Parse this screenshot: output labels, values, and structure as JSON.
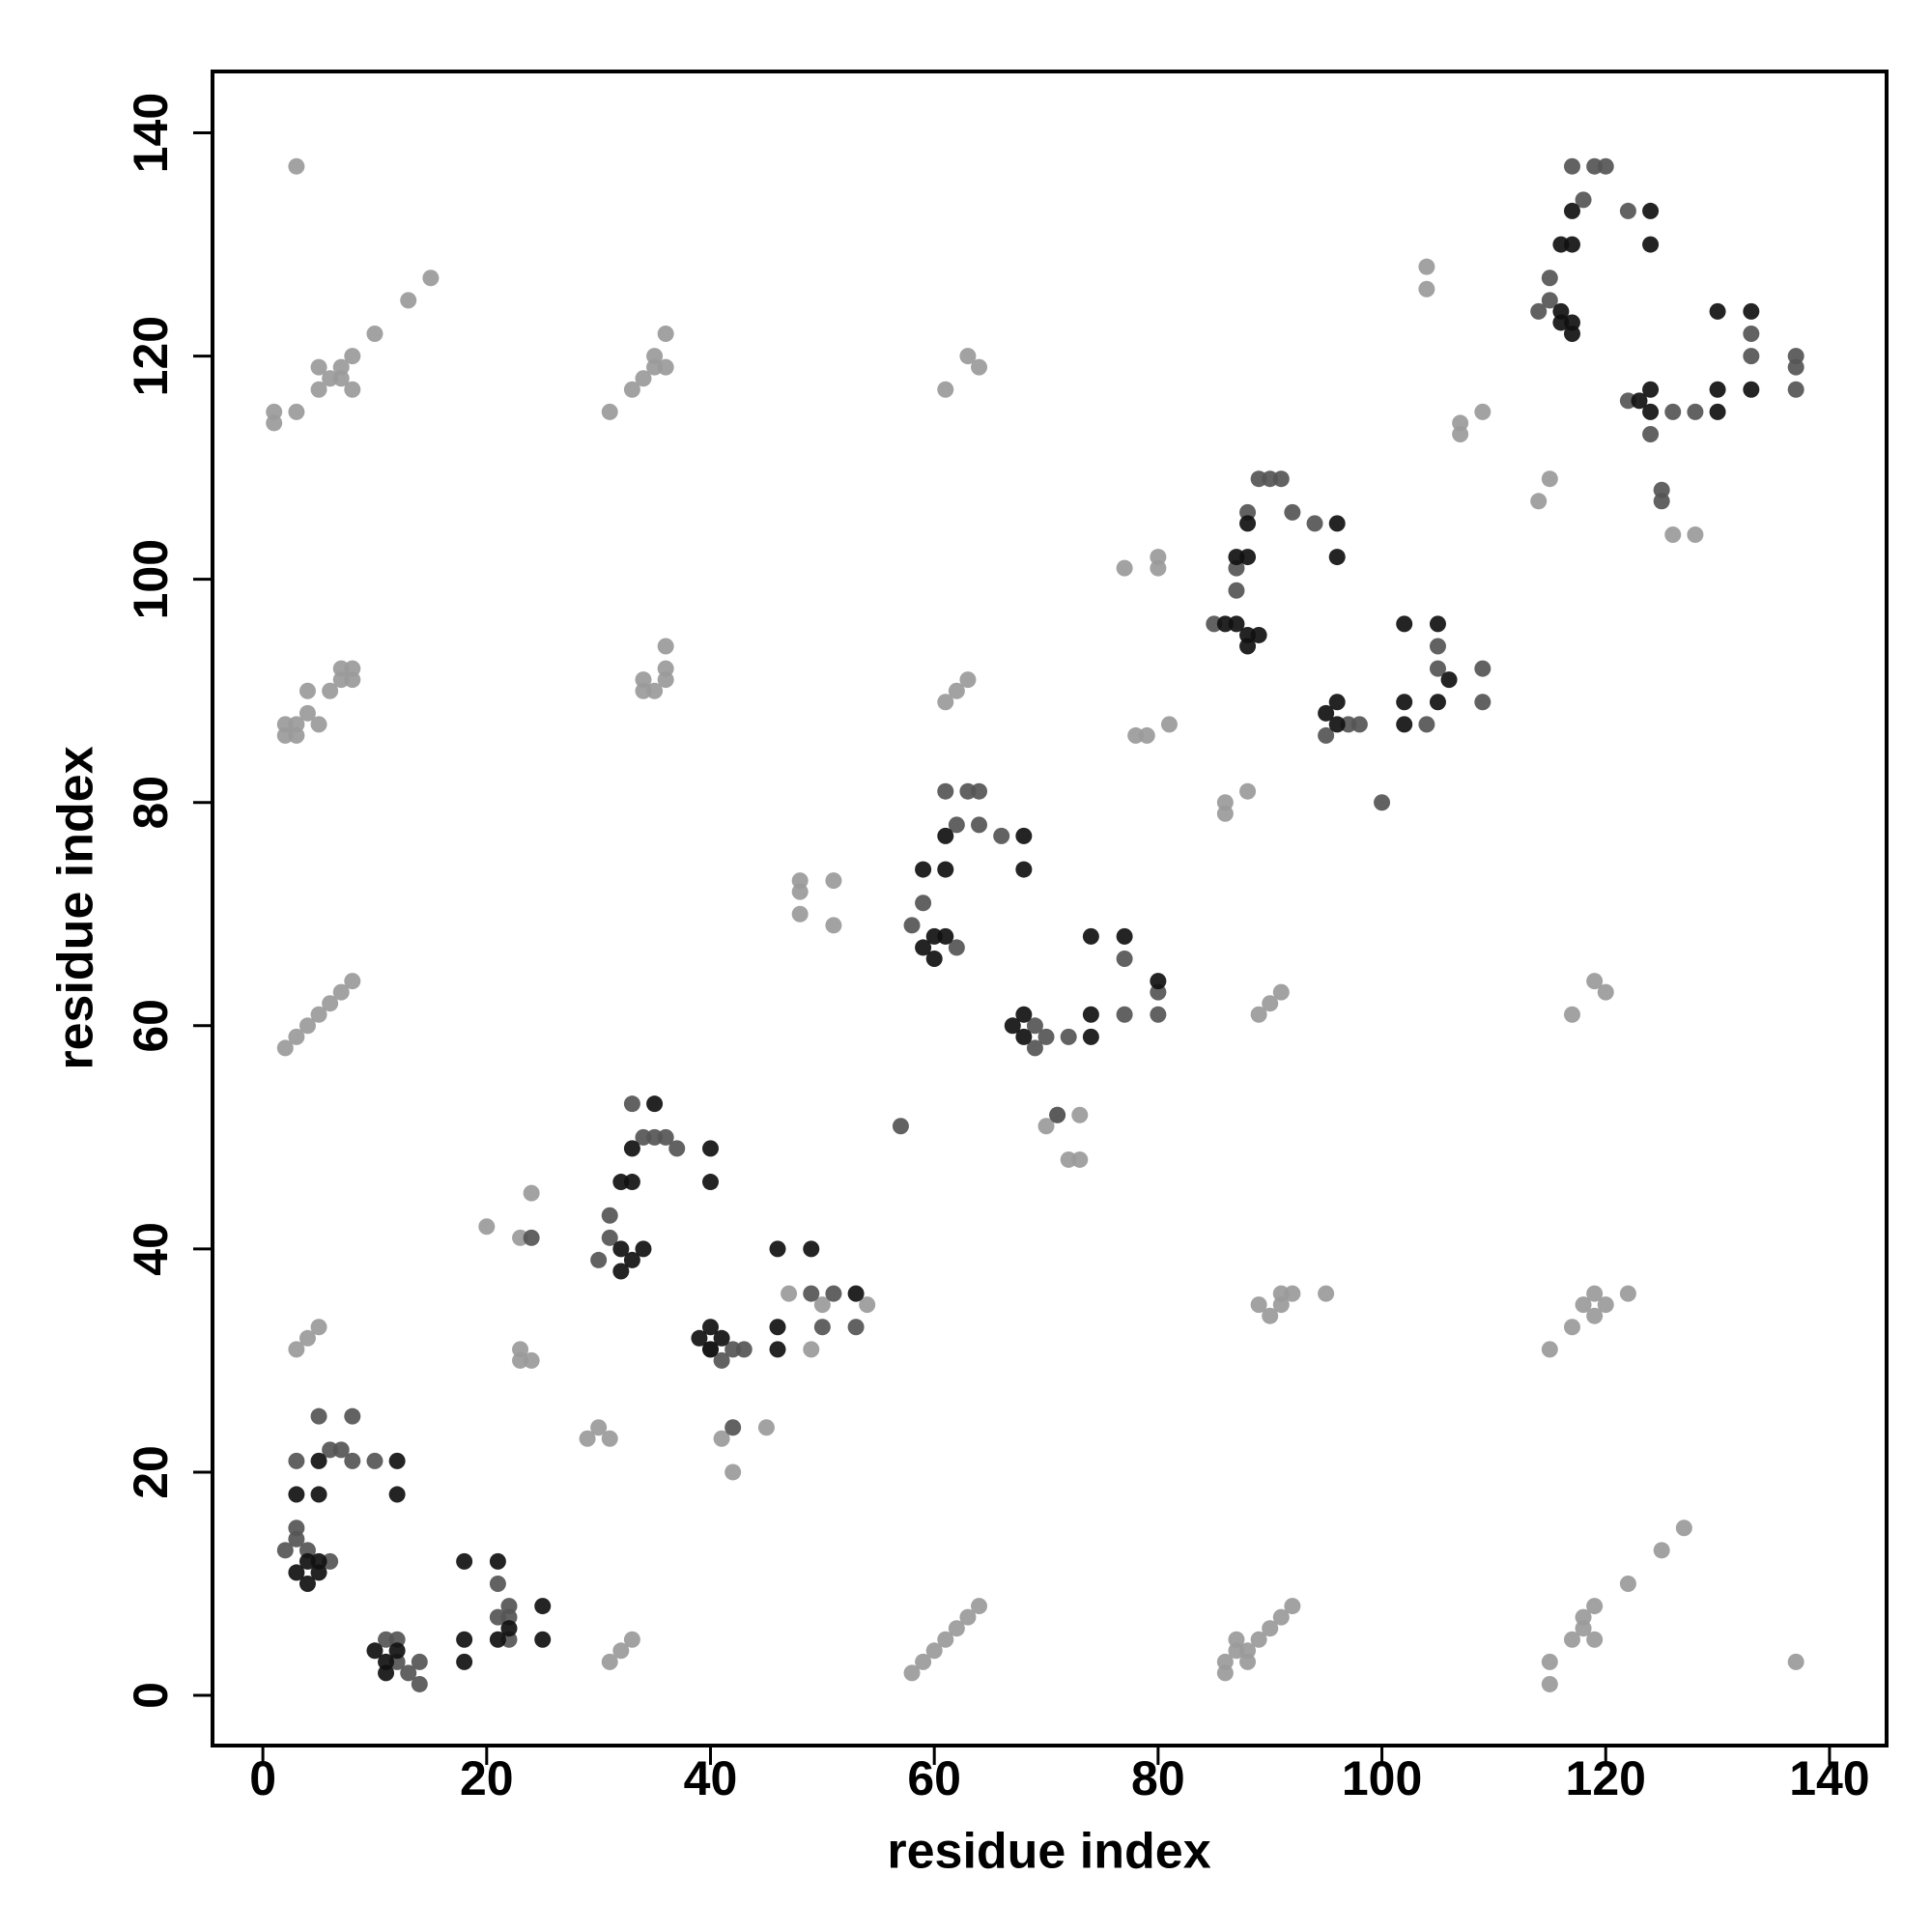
{
  "chart_data": {
    "type": "scatter",
    "xlabel": "residue index",
    "ylabel": "residue index",
    "xlim": [
      -4.5,
      145.1
    ],
    "ylim": [
      -4.5,
      145.5
    ],
    "xticks": [
      0,
      20,
      40,
      60,
      80,
      100,
      120,
      140
    ],
    "yticks": [
      0,
      20,
      40,
      60,
      80,
      100,
      120,
      140
    ],
    "series": [
      {
        "color": "#9a9a9a",
        "x": [
          3,
          1,
          1,
          3,
          5,
          5,
          6,
          7,
          7,
          8,
          8,
          10,
          13,
          15,
          31,
          33,
          34,
          35,
          35,
          36,
          36,
          61,
          63,
          64,
          2,
          2,
          3,
          3,
          4,
          5,
          4,
          6,
          7,
          7,
          8,
          8,
          34,
          34,
          35,
          36,
          36,
          36,
          61,
          62,
          63,
          2,
          3,
          4,
          5,
          6,
          7,
          8,
          3,
          4,
          5,
          31,
          32,
          33,
          58,
          59,
          60,
          61,
          62,
          63,
          64,
          86,
          86,
          87,
          87,
          88,
          88,
          89,
          90,
          91,
          92,
          115,
          115,
          117,
          118,
          118,
          119,
          119,
          122,
          125,
          127,
          137,
          89,
          90,
          91,
          91,
          92,
          95,
          115,
          117,
          118,
          119,
          119,
          120,
          122,
          89,
          90,
          91,
          117,
          119,
          120,
          77,
          80,
          80,
          78,
          79,
          81,
          86,
          86,
          88,
          104,
          104,
          107,
          107,
          109,
          114,
          115,
          126,
          128,
          20,
          23,
          24,
          23,
          23,
          24,
          29,
          30,
          31,
          41,
          42,
          45,
          47,
          50,
          49,
          48,
          48,
          48,
          51,
          51,
          70,
          71,
          73,
          72,
          73,
          54
        ],
        "y": [
          137,
          115,
          114,
          115,
          117,
          119,
          118,
          118,
          119,
          117,
          120,
          122,
          125,
          127,
          115,
          117,
          118,
          119,
          120,
          122,
          119,
          117,
          120,
          119,
          86,
          87,
          87,
          86,
          88,
          87,
          90,
          90,
          91,
          92,
          91,
          92,
          91,
          90,
          90,
          91,
          92,
          94,
          89,
          90,
          91,
          58,
          59,
          60,
          61,
          62,
          63,
          64,
          31,
          32,
          33,
          3,
          4,
          5,
          2,
          3,
          4,
          5,
          6,
          7,
          8,
          2,
          3,
          4,
          5,
          3,
          4,
          5,
          6,
          7,
          8,
          1,
          3,
          5,
          6,
          7,
          5,
          8,
          10,
          13,
          15,
          3,
          35,
          34,
          35,
          36,
          36,
          36,
          31,
          33,
          35,
          36,
          34,
          35,
          36,
          61,
          62,
          63,
          61,
          64,
          63,
          101,
          101,
          102,
          86,
          86,
          87,
          79,
          80,
          81,
          128,
          126,
          113,
          114,
          115,
          107,
          109,
          104,
          104,
          42,
          41,
          45,
          31,
          30,
          30,
          23,
          24,
          23,
          23,
          20,
          24,
          36,
          35,
          31,
          72,
          73,
          70,
          73,
          69,
          51,
          52,
          52,
          48,
          48,
          35
        ]
      },
      {
        "color": "#555555",
        "x": [
          2,
          3,
          3,
          4,
          6,
          3,
          5,
          6,
          7,
          8,
          10,
          8,
          11,
          12,
          12,
          13,
          14,
          14,
          21,
          22,
          21,
          22,
          22,
          24,
          31,
          31,
          33,
          34,
          35,
          37,
          36,
          30,
          40,
          41,
          42,
          43,
          42,
          49,
          50,
          51,
          53,
          58,
          59,
          61,
          62,
          63,
          64,
          64,
          66,
          62,
          57,
          69,
          69,
          70,
          71,
          72,
          77,
          77,
          80,
          80,
          87,
          87,
          88,
          89,
          90,
          91,
          92,
          94,
          85,
          95,
          97,
          98,
          100,
          104,
          105,
          105,
          109,
          109,
          115,
          115,
          117,
          118,
          119,
          120,
          122,
          114,
          122,
          124,
          125,
          125,
          126,
          128,
          133,
          133,
          137,
          137,
          137
        ],
        "y": [
          13,
          14,
          15,
          13,
          12,
          21,
          25,
          22,
          22,
          25,
          21,
          21,
          5,
          5,
          3,
          2,
          1,
          3,
          10,
          8,
          7,
          7,
          5,
          41,
          41,
          43,
          53,
          50,
          50,
          49,
          50,
          39,
          31,
          30,
          31,
          31,
          24,
          36,
          33,
          36,
          33,
          69,
          71,
          81,
          78,
          81,
          81,
          78,
          77,
          67,
          51,
          58,
          60,
          59,
          52,
          59,
          66,
          61,
          61,
          63,
          99,
          101,
          106,
          109,
          109,
          109,
          106,
          105,
          96,
          86,
          87,
          87,
          80,
          87,
          94,
          92,
          92,
          89,
          127,
          125,
          137,
          134,
          137,
          137,
          133,
          124,
          116,
          113,
          108,
          107,
          115,
          115,
          122,
          120,
          119,
          117,
          120
        ]
      },
      {
        "color": "#111111",
        "x": [
          3,
          4,
          5,
          5,
          4,
          3,
          5,
          5,
          12,
          12,
          11,
          11,
          12,
          10,
          18,
          18,
          18,
          21,
          21,
          22,
          25,
          25,
          32,
          33,
          33,
          35,
          40,
          40,
          32,
          33,
          34,
          32,
          39,
          40,
          40,
          41,
          46,
          49,
          46,
          46,
          53,
          59,
          61,
          61,
          68,
          68,
          59,
          60,
          61,
          60,
          67,
          68,
          68,
          74,
          77,
          74,
          74,
          80,
          87,
          88,
          88,
          96,
          96,
          87,
          88,
          89,
          88,
          86,
          95,
          96,
          96,
          102,
          105,
          102,
          102,
          105,
          106,
          116,
          117,
          117,
          124,
          124,
          116,
          117,
          117,
          116,
          123,
          124,
          124,
          130,
          133,
          130,
          130,
          133
        ],
        "y": [
          11,
          12,
          12,
          11,
          10,
          18,
          18,
          21,
          18,
          21,
          2,
          3,
          4,
          4,
          3,
          5,
          12,
          12,
          5,
          6,
          5,
          8,
          46,
          46,
          49,
          53,
          49,
          46,
          40,
          39,
          40,
          38,
          32,
          33,
          31,
          32,
          40,
          40,
          33,
          31,
          36,
          74,
          74,
          77,
          77,
          74,
          67,
          68,
          68,
          66,
          60,
          61,
          59,
          68,
          68,
          61,
          59,
          64,
          102,
          105,
          102,
          105,
          102,
          96,
          95,
          95,
          94,
          96,
          88,
          89,
          87,
          96,
          96,
          89,
          87,
          89,
          91,
          130,
          133,
          130,
          133,
          130,
          124,
          123,
          122,
          123,
          116,
          117,
          115,
          124,
          124,
          117,
          115,
          117
        ]
      }
    ]
  }
}
